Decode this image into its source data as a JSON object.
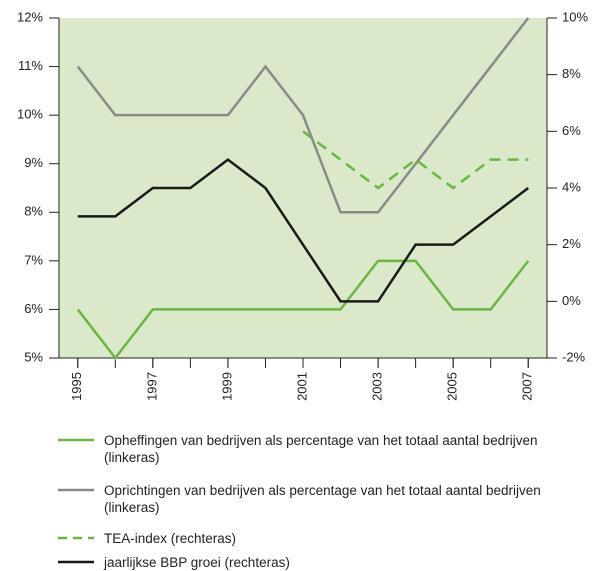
{
  "chart_data": {
    "type": "line",
    "x": [
      1995,
      1996,
      1997,
      1998,
      1999,
      2000,
      2001,
      2002,
      2003,
      2004,
      2005,
      2006,
      2007
    ],
    "xlim": [
      1994.5,
      2007.5
    ],
    "xticks": [
      1995,
      1997,
      1999,
      2001,
      2003,
      2005,
      2007
    ],
    "ylim": [
      5,
      12
    ],
    "yticks": [
      {
        "value": 5,
        "label": "5%"
      },
      {
        "value": 6,
        "label": "6%"
      },
      {
        "value": 7,
        "label": "7%"
      },
      {
        "value": 8,
        "label": "8%"
      },
      {
        "value": 9,
        "label": "9%"
      },
      {
        "value": 10,
        "label": "10%"
      },
      {
        "value": 11,
        "label": "11%"
      },
      {
        "value": 12,
        "label": "12%"
      }
    ],
    "y2lim": [
      -2,
      10
    ],
    "y2ticks": [
      {
        "value": -2,
        "label": "-2%"
      },
      {
        "value": 0,
        "label": "0%"
      },
      {
        "value": 2,
        "label": "2%"
      },
      {
        "value": 4,
        "label": "4%"
      },
      {
        "value": 6,
        "label": "6%"
      },
      {
        "value": 8,
        "label": "8%"
      },
      {
        "value": 10,
        "label": "10%"
      }
    ],
    "background": "#d9e9c9",
    "series": [
      {
        "name": "Opheffingen van bedrijven als percentage van het totaal aantal bedrijven (linkeras)",
        "color": "#6cb545",
        "dash": false,
        "values": [
          6,
          5,
          6,
          6,
          6,
          6,
          6,
          6,
          7,
          7,
          6,
          6,
          7
        ]
      },
      {
        "name": "Oprichtingen van bedrijven als percentage van het totaal aantal bedrijven (linkeras)",
        "color": "#8a8a8a",
        "dash": false,
        "values": [
          11,
          10,
          10,
          10,
          10,
          11,
          10,
          8,
          8,
          9,
          10,
          11,
          12
        ]
      },
      {
        "name": "TEA-index (rechteras)",
        "color": "#6cb545",
        "dash": true,
        "axis": "y2",
        "values": [
          null,
          null,
          null,
          null,
          null,
          null,
          6,
          5,
          4,
          5,
          4,
          5,
          5
        ]
      },
      {
        "name": "jaarlijkse BBP groei (rechteras)",
        "color": "#1a1a1a",
        "dash": false,
        "axis": "y2",
        "values": [
          3,
          3,
          4,
          4,
          5,
          4,
          2,
          0,
          0,
          2,
          2,
          3,
          4
        ]
      }
    ]
  }
}
